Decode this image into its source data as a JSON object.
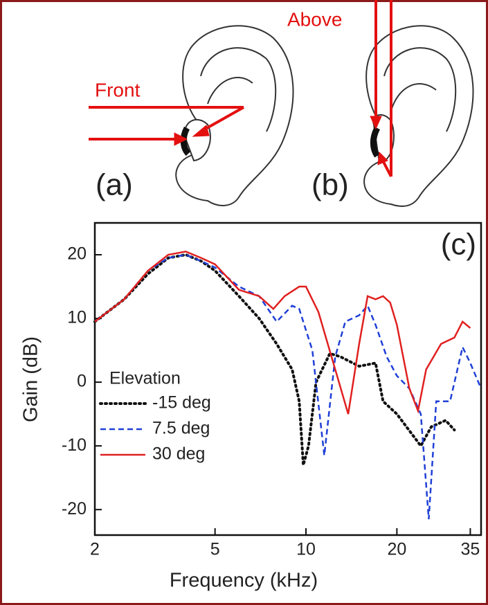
{
  "chart_data": {
    "type": "line",
    "panel_labels": [
      "(a)",
      "(b)",
      "(c)"
    ],
    "annotations": [
      "Front",
      "Above"
    ],
    "xlabel": "Frequency (kHz)",
    "ylabel": "Gain (dB)",
    "xscale": "log",
    "xlim": [
      2,
      38
    ],
    "xticks": [
      2,
      5,
      10,
      20,
      35
    ],
    "ylim": [
      -24,
      25
    ],
    "yticks": [
      20,
      10,
      0,
      -10,
      -20
    ],
    "legend": "lower left",
    "legend_title": "Elevation",
    "series": [
      {
        "name": "-15 deg",
        "color": "#111111",
        "style": "dotted",
        "x": [
          2,
          2.5,
          3,
          3.5,
          4,
          4.5,
          5,
          6,
          7,
          8,
          9,
          9.5,
          9.8,
          10.2,
          10.8,
          12,
          13,
          15,
          17,
          18,
          20,
          24,
          26,
          29,
          31
        ],
        "values": [
          9.5,
          13,
          17,
          19.5,
          20,
          19,
          17.5,
          13.5,
          10,
          6,
          2,
          -3,
          -13,
          -10,
          0,
          4.5,
          4,
          2.5,
          3,
          -3,
          -5,
          -10,
          -7,
          -6,
          -7.5
        ]
      },
      {
        "name": "7.5 deg",
        "color": "#1f3fd6",
        "style": "dashed",
        "x": [
          2,
          2.5,
          3,
          3.5,
          4,
          4.5,
          5,
          6,
          7,
          8,
          9,
          9.5,
          10.5,
          11.5,
          12.5,
          13.5,
          15,
          16,
          17,
          18.5,
          20,
          22,
          24,
          25.5,
          27,
          30,
          33,
          35,
          38
        ],
        "values": [
          9.5,
          13,
          17.5,
          19.5,
          20,
          19,
          18,
          15,
          13.5,
          9.5,
          12,
          11.5,
          5,
          -11.5,
          4,
          9.5,
          10.5,
          12,
          9,
          4,
          1,
          -1,
          -5,
          -21.5,
          -3,
          -3,
          5.5,
          3,
          -1
        ]
      },
      {
        "name": "30 deg",
        "color": "#e02020",
        "style": "solid",
        "x": [
          2,
          2.5,
          3,
          3.5,
          4,
          4.5,
          5,
          6,
          7,
          7.8,
          8.5,
          9.5,
          10,
          11,
          12.5,
          13.8,
          15,
          16,
          17,
          18,
          19,
          20,
          22,
          23.5,
          25,
          28,
          31,
          33,
          35
        ],
        "values": [
          9.5,
          13,
          17.5,
          20,
          20.5,
          19.5,
          18.5,
          14.5,
          13.5,
          11.5,
          13.5,
          15,
          15,
          11,
          2,
          -5,
          6,
          13.5,
          13,
          13.5,
          12.5,
          9,
          -1,
          -4.5,
          2,
          6,
          7,
          9.5,
          8.5
        ]
      }
    ]
  }
}
